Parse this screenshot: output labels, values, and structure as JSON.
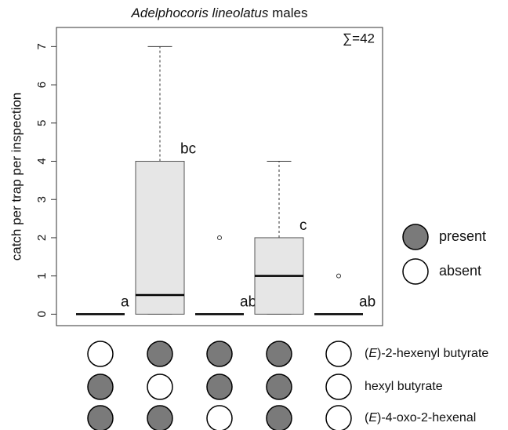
{
  "chart_data": {
    "type": "box",
    "title_parts": [
      "Adelphocoris lineolatus",
      " males"
    ],
    "ylabel": "catch per trap per inspection",
    "annotation": "∑=42",
    "ylim": [
      -0.3,
      7.5
    ],
    "yticks": [
      0,
      1,
      2,
      3,
      4,
      5,
      6,
      7
    ],
    "box_color": "#e6e6e6",
    "boxes": [
      {
        "min": 0,
        "q1": 0,
        "median": 0,
        "q3": 0,
        "max": 0,
        "label": "a"
      },
      {
        "min": 0,
        "q1": 0,
        "median": 0.5,
        "q3": 4,
        "max": 7,
        "label": "bc"
      },
      {
        "min": 0,
        "q1": 0,
        "median": 0,
        "q3": 0,
        "max": 0,
        "outliers": [
          2
        ],
        "label": "ab"
      },
      {
        "min": 0,
        "q1": 0,
        "median": 1,
        "q3": 2,
        "max": 4,
        "label": "c"
      },
      {
        "min": 0,
        "q1": 0,
        "median": 0,
        "q3": 0,
        "max": 0,
        "outliers": [
          1
        ],
        "label": "ab"
      }
    ],
    "legend": [
      {
        "label": "present",
        "color": "#7a7a7a"
      },
      {
        "label": "absent",
        "color": "#ffffff"
      }
    ],
    "treatments": [
      {
        "name_parts": [
          "(",
          "E",
          ")-2-hexenyl butyrate"
        ],
        "present": [
          false,
          true,
          true,
          true,
          false
        ]
      },
      {
        "name_parts": [
          "hexyl butyrate"
        ],
        "present": [
          true,
          false,
          true,
          true,
          false
        ]
      },
      {
        "name_parts": [
          "(",
          "E",
          ")-4-oxo-2-hexenal"
        ],
        "present": [
          true,
          true,
          false,
          true,
          false
        ]
      }
    ]
  }
}
